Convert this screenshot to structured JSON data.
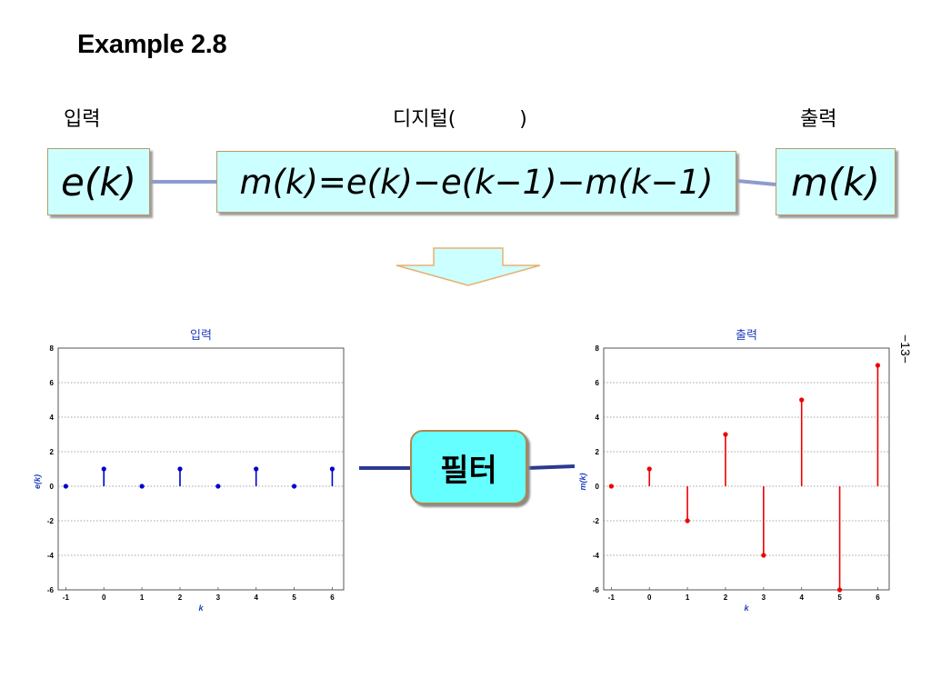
{
  "title": "Example 2.8",
  "headers": {
    "input": "입력",
    "middle": "디지털(          )",
    "output": "출력"
  },
  "boxes": {
    "input": "e(k)",
    "equation": "m(k)=e(k)−e(k−1)−m(k−1)",
    "output": "m(k)"
  },
  "filter_label": "필터",
  "page_number": "−13−",
  "colors": {
    "box_fill": "#ccffff",
    "filter_fill": "#66ffff",
    "connector": "#2b3a8f",
    "arrow_fill": "#ccffff",
    "arrow_stroke": "#e8b070",
    "input_stem": "#0000cc",
    "output_stem": "#ee0000"
  },
  "chart_data": [
    {
      "type": "scatter",
      "style": "stem",
      "title": "입력",
      "xlabel": "k",
      "ylabel": "e(k)",
      "x": [
        -1,
        0,
        1,
        2,
        3,
        4,
        5,
        6
      ],
      "y": [
        0,
        1,
        0,
        1,
        0,
        1,
        0,
        1
      ],
      "xticks": [
        "-1",
        "0",
        "1",
        "2",
        "3",
        "4",
        "5",
        "6"
      ],
      "yticks": [
        "8",
        "6",
        "4",
        "2",
        "0",
        "-2",
        "-4",
        "-6"
      ],
      "xlim": [
        -1.2,
        6.3
      ],
      "ylim": [
        -6,
        8
      ],
      "grid": "horizontal-dotted"
    },
    {
      "type": "scatter",
      "style": "stem",
      "title": "출력",
      "xlabel": "k",
      "ylabel": "m(k)",
      "x": [
        -1,
        0,
        1,
        2,
        3,
        4,
        5,
        6
      ],
      "y": [
        0,
        1,
        -2,
        3,
        -4,
        5,
        -6,
        7
      ],
      "xticks": [
        "-1",
        "0",
        "1",
        "2",
        "3",
        "4",
        "5",
        "6"
      ],
      "yticks": [
        "8",
        "6",
        "4",
        "2",
        "0",
        "-2",
        "-4",
        "-6"
      ],
      "xlim": [
        -1.2,
        6.3
      ],
      "ylim": [
        -6,
        8
      ],
      "grid": "horizontal-dotted"
    }
  ]
}
